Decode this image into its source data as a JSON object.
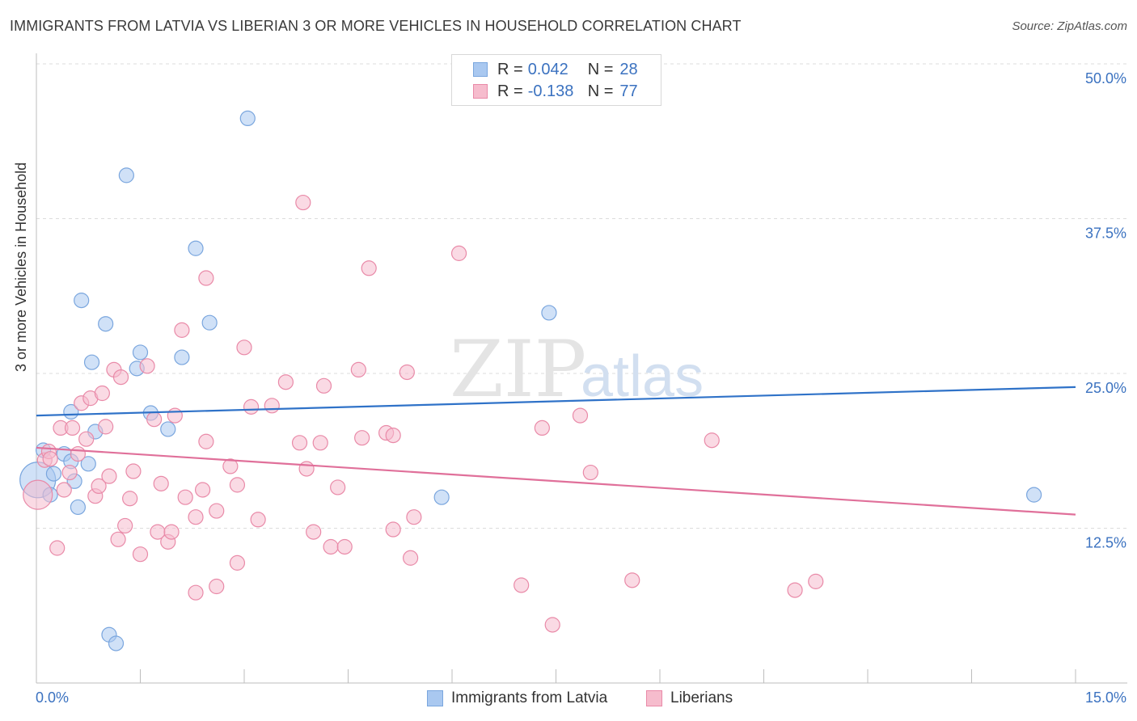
{
  "title": "IMMIGRANTS FROM LATVIA VS LIBERIAN 3 OR MORE VEHICLES IN HOUSEHOLD CORRELATION CHART",
  "source": "Source: ZipAtlas.com",
  "watermark": {
    "zip": "ZIP",
    "atlas": "atlas"
  },
  "legend": {
    "rows": [
      {
        "r_label": "R =",
        "r_value": "0.042",
        "n_label": "N =",
        "n_value": "28",
        "color": "#a9c8f0",
        "border": "#7aa6de"
      },
      {
        "r_label": "R =",
        "r_value": "-0.138",
        "n_label": "N =",
        "n_value": "77",
        "color": "#f6bccd",
        "border": "#e98aa8"
      }
    ]
  },
  "bottom_legend": [
    {
      "label": "Immigrants from Latvia",
      "color": "#a9c8f0",
      "border": "#7aa6de"
    },
    {
      "label": "Liberians",
      "color": "#f6bccd",
      "border": "#e98aa8"
    }
  ],
  "chart_data": {
    "type": "scatter",
    "title": "IMMIGRANTS FROM LATVIA VS LIBERIAN 3 OR MORE VEHICLES IN HOUSEHOLD CORRELATION CHART",
    "xlabel": "",
    "ylabel": "3 or more Vehicles in Household",
    "xlim": [
      0,
      15
    ],
    "ylim": [
      0,
      50
    ],
    "x_tick_labels": [
      "0.0%",
      "15.0%"
    ],
    "y_ticks": [
      12.5,
      25.0,
      37.5,
      50.0
    ],
    "y_tick_labels": [
      "12.5%",
      "25.0%",
      "37.5%",
      "50.0%"
    ],
    "grid": true,
    "legend_position": "top-center",
    "series": [
      {
        "name": "Immigrants from Latvia",
        "color": "#a9c8f0",
        "stroke": "#7aa6de",
        "line_color": "#2f72c8",
        "trend": {
          "x": [
            0,
            15
          ],
          "y": [
            21.6,
            23.9
          ]
        },
        "points": [
          [
            0.02,
            16.4,
            22
          ],
          [
            0.1,
            18.8,
            9
          ],
          [
            0.2,
            15.2,
            9
          ],
          [
            0.25,
            16.9,
            9
          ],
          [
            0.4,
            18.5,
            9
          ],
          [
            0.5,
            17.9,
            9
          ],
          [
            0.55,
            16.3,
            9
          ],
          [
            0.5,
            21.9,
            9
          ],
          [
            0.6,
            14.2,
            9
          ],
          [
            0.65,
            30.9,
            9
          ],
          [
            0.75,
            17.7,
            9
          ],
          [
            0.8,
            25.9,
            9
          ],
          [
            0.85,
            20.3,
            9
          ],
          [
            1.0,
            29.0,
            9
          ],
          [
            1.05,
            3.9,
            9
          ],
          [
            1.15,
            3.2,
            9
          ],
          [
            1.3,
            41.0,
            9
          ],
          [
            1.45,
            25.4,
            9
          ],
          [
            1.5,
            26.7,
            9
          ],
          [
            1.65,
            21.8,
            9
          ],
          [
            1.9,
            20.5,
            9
          ],
          [
            2.1,
            26.3,
            9
          ],
          [
            2.3,
            35.1,
            9
          ],
          [
            2.5,
            29.1,
            9
          ],
          [
            3.05,
            45.6,
            9
          ],
          [
            5.85,
            15.0,
            9
          ],
          [
            7.4,
            29.9,
            9
          ],
          [
            14.4,
            15.2,
            9
          ]
        ]
      },
      {
        "name": "Liberians",
        "color": "#f6bccd",
        "stroke": "#e98aa8",
        "line_color": "#e0709a",
        "trend": {
          "x": [
            0,
            15
          ],
          "y": [
            19.0,
            13.6
          ]
        },
        "points": [
          [
            0.02,
            15.2,
            18
          ],
          [
            0.12,
            18.0,
            9
          ],
          [
            0.18,
            18.7,
            9
          ],
          [
            0.2,
            18.1,
            9
          ],
          [
            0.3,
            10.9,
            9
          ],
          [
            0.35,
            20.6,
            9
          ],
          [
            0.4,
            15.6,
            9
          ],
          [
            0.48,
            17.0,
            9
          ],
          [
            0.52,
            20.6,
            9
          ],
          [
            0.6,
            18.5,
            9
          ],
          [
            0.65,
            22.6,
            9
          ],
          [
            0.72,
            19.7,
            9
          ],
          [
            0.78,
            23.0,
            9
          ],
          [
            0.85,
            15.1,
            9
          ],
          [
            0.9,
            15.9,
            9
          ],
          [
            0.95,
            23.4,
            9
          ],
          [
            1.0,
            20.7,
            9
          ],
          [
            1.05,
            16.7,
            9
          ],
          [
            1.12,
            25.3,
            9
          ],
          [
            1.18,
            11.6,
            9
          ],
          [
            1.22,
            24.7,
            9
          ],
          [
            1.28,
            12.7,
            9
          ],
          [
            1.35,
            14.9,
            9
          ],
          [
            1.4,
            17.1,
            9
          ],
          [
            1.5,
            10.4,
            9
          ],
          [
            1.6,
            25.6,
            9
          ],
          [
            1.7,
            21.3,
            9
          ],
          [
            1.75,
            12.2,
            9
          ],
          [
            1.8,
            16.1,
            9
          ],
          [
            1.9,
            11.4,
            9
          ],
          [
            1.95,
            12.2,
            9
          ],
          [
            2.0,
            21.6,
            9
          ],
          [
            2.1,
            28.5,
            9
          ],
          [
            2.15,
            15.0,
            9
          ],
          [
            2.3,
            7.3,
            9
          ],
          [
            2.3,
            13.4,
            9
          ],
          [
            2.4,
            15.6,
            9
          ],
          [
            2.45,
            19.5,
            9
          ],
          [
            2.45,
            32.7,
            9
          ],
          [
            2.6,
            7.8,
            9
          ],
          [
            2.6,
            13.9,
            9
          ],
          [
            2.8,
            17.5,
            9
          ],
          [
            2.9,
            9.7,
            9
          ],
          [
            2.9,
            16.0,
            9
          ],
          [
            3.0,
            27.1,
            9
          ],
          [
            3.1,
            22.3,
            9
          ],
          [
            3.2,
            13.2,
            9
          ],
          [
            3.4,
            22.4,
            9
          ],
          [
            3.6,
            24.3,
            9
          ],
          [
            3.8,
            19.4,
            9
          ],
          [
            3.85,
            38.8,
            9
          ],
          [
            3.9,
            17.3,
            9
          ],
          [
            4.0,
            12.2,
            9
          ],
          [
            4.1,
            19.4,
            9
          ],
          [
            4.15,
            24.0,
            9
          ],
          [
            4.25,
            11.0,
            9
          ],
          [
            4.35,
            15.8,
            9
          ],
          [
            4.45,
            11.0,
            9
          ],
          [
            4.65,
            25.3,
            9
          ],
          [
            4.7,
            19.8,
            9
          ],
          [
            4.8,
            33.5,
            9
          ],
          [
            5.05,
            20.2,
            9
          ],
          [
            5.15,
            20.0,
            9
          ],
          [
            5.15,
            12.4,
            9
          ],
          [
            5.35,
            25.1,
            9
          ],
          [
            5.4,
            10.1,
            9
          ],
          [
            5.45,
            13.4,
            9
          ],
          [
            6.1,
            34.7,
            9
          ],
          [
            7.0,
            7.9,
            9
          ],
          [
            7.3,
            20.6,
            9
          ],
          [
            7.45,
            4.7,
            9
          ],
          [
            7.85,
            21.6,
            9
          ],
          [
            8.0,
            17.0,
            9
          ],
          [
            8.6,
            8.3,
            9
          ],
          [
            9.75,
            19.6,
            9
          ],
          [
            10.95,
            7.5,
            9
          ],
          [
            11.25,
            8.2,
            9
          ]
        ]
      }
    ]
  }
}
